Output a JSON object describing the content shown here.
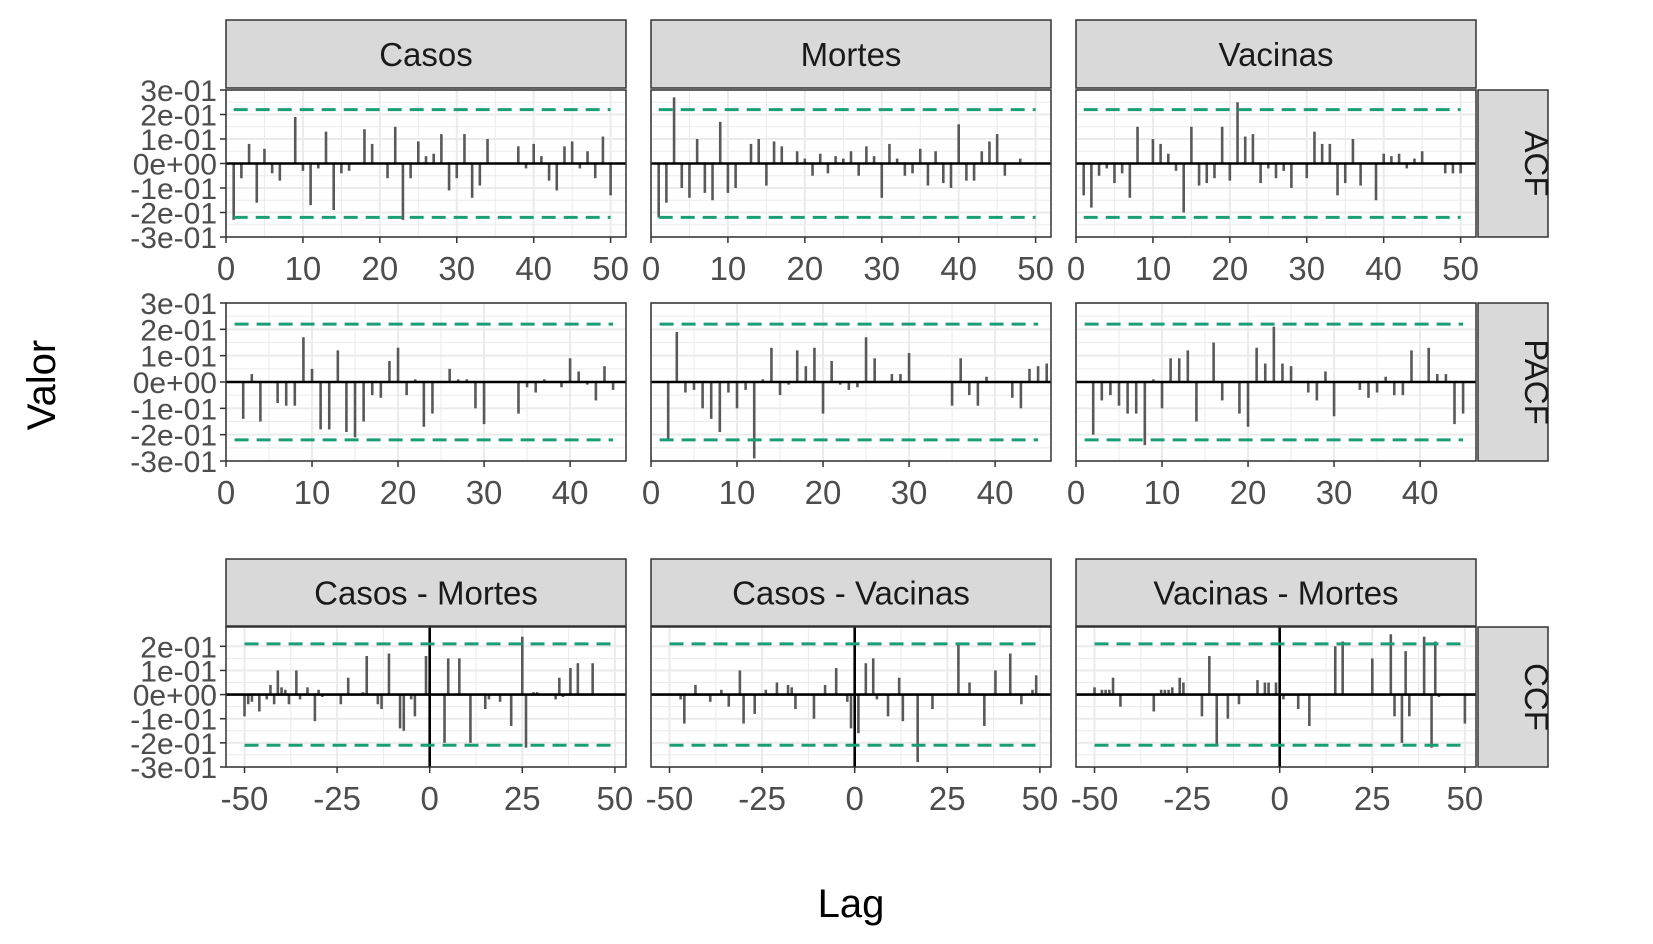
{
  "figure": {
    "ylabel": "Valor",
    "xlabel": "Lag",
    "colors": {
      "bar": "#595959",
      "conf": "#1b9e77",
      "strip_bg": "#d9d9d9",
      "grid": "#ebebeb",
      "zero": "#000000"
    }
  },
  "chart_data": [
    {
      "type": "bar",
      "row": "ACF",
      "ylim": [
        -0.3,
        0.3
      ],
      "y_ticks": [
        "3e-01",
        "2e-01",
        "1e-01",
        "0e+00",
        "-1e-01",
        "-2e-01",
        "-3e-01"
      ],
      "y_tick_values": [
        0.3,
        0.2,
        0.1,
        0.0,
        -0.1,
        -0.2,
        -0.3
      ],
      "xlim": [
        0,
        52
      ],
      "x_ticks": [
        0,
        10,
        20,
        30,
        40,
        50
      ],
      "conf": 0.22,
      "panels": [
        {
          "strip": "Casos",
          "x_start": 1,
          "values": [
            -0.23,
            -0.06,
            0.08,
            -0.16,
            0.06,
            -0.04,
            -0.07,
            0.0,
            0.19,
            -0.03,
            -0.17,
            -0.02,
            0.13,
            -0.19,
            -0.04,
            -0.03,
            0.0,
            0.14,
            0.08,
            0.0,
            -0.06,
            0.15,
            -0.23,
            -0.06,
            0.09,
            0.03,
            0.04,
            0.12,
            -0.11,
            -0.06,
            0.12,
            -0.14,
            -0.09,
            0.1,
            0.0,
            0.0,
            0.0,
            0.07,
            -0.02,
            0.08,
            0.03,
            -0.07,
            -0.11,
            0.07,
            0.09,
            -0.02,
            0.05,
            -0.06,
            0.11,
            -0.13
          ]
        },
        {
          "strip": "Mortes",
          "x_start": 1,
          "values": [
            -0.22,
            -0.16,
            0.27,
            -0.1,
            -0.14,
            0.1,
            -0.12,
            -0.15,
            0.17,
            -0.12,
            -0.1,
            0.0,
            0.08,
            0.1,
            -0.09,
            0.09,
            0.07,
            0.0,
            0.05,
            0.02,
            -0.05,
            0.04,
            -0.04,
            0.03,
            0.02,
            0.05,
            -0.05,
            0.07,
            0.03,
            -0.14,
            0.08,
            0.02,
            -0.05,
            -0.04,
            0.06,
            -0.09,
            0.05,
            -0.08,
            -0.1,
            0.16,
            -0.07,
            -0.07,
            0.05,
            0.09,
            0.12,
            -0.05,
            0.0,
            0.02,
            0.0,
            0.0
          ]
        },
        {
          "strip": "Vacinas",
          "x_start": 1,
          "values": [
            -0.13,
            -0.18,
            -0.05,
            -0.02,
            -0.08,
            -0.04,
            -0.14,
            0.15,
            0.0,
            0.1,
            0.08,
            0.04,
            -0.03,
            -0.2,
            0.15,
            -0.09,
            -0.08,
            -0.06,
            0.15,
            -0.07,
            0.25,
            0.11,
            0.12,
            -0.08,
            -0.02,
            -0.06,
            -0.03,
            -0.1,
            0.0,
            -0.06,
            0.13,
            0.08,
            0.08,
            -0.13,
            -0.08,
            0.1,
            -0.09,
            0.0,
            -0.15,
            0.04,
            0.03,
            0.04,
            -0.02,
            0.02,
            0.05,
            0.0,
            0.0,
            -0.04,
            -0.04,
            -0.04
          ]
        }
      ]
    },
    {
      "type": "bar",
      "row": "PACF",
      "ylim": [
        -0.3,
        0.3
      ],
      "y_ticks": [
        "3e-01",
        "2e-01",
        "1e-01",
        "0e+00",
        "-1e-01",
        "-2e-01",
        "-3e-01"
      ],
      "y_tick_values": [
        0.3,
        0.2,
        0.1,
        0.0,
        -0.1,
        -0.2,
        -0.3
      ],
      "xlim": [
        0,
        46.5
      ],
      "x_ticks": [
        0,
        10,
        20,
        30,
        40
      ],
      "conf": 0.22,
      "panels": [
        {
          "strip": "Casos",
          "x_start": 2,
          "values": [
            -0.14,
            0.03,
            -0.15,
            0.0,
            -0.08,
            -0.09,
            -0.09,
            0.17,
            0.05,
            -0.18,
            -0.18,
            0.12,
            -0.19,
            -0.21,
            -0.15,
            -0.05,
            -0.06,
            0.08,
            0.13,
            -0.05,
            0.01,
            -0.17,
            -0.12,
            0.0,
            0.05,
            0.01,
            0.01,
            -0.1,
            -0.16,
            0.0,
            0.0,
            0.0,
            -0.12,
            -0.02,
            -0.04,
            0.01,
            0.0,
            -0.02,
            0.09,
            0.04,
            -0.01,
            -0.07,
            0.06,
            -0.03
          ]
        },
        {
          "strip": "Mortes",
          "x_start": 2,
          "values": [
            -0.22,
            0.19,
            -0.04,
            -0.03,
            -0.1,
            -0.14,
            -0.19,
            -0.04,
            -0.1,
            -0.03,
            -0.29,
            0.01,
            0.13,
            -0.05,
            -0.01,
            0.12,
            0.06,
            0.13,
            -0.12,
            0.08,
            -0.01,
            -0.03,
            -0.02,
            0.17,
            0.09,
            0.0,
            0.03,
            0.03,
            0.11,
            0.0,
            0.0,
            0.0,
            0.0,
            -0.09,
            0.09,
            -0.05,
            -0.09,
            0.02,
            0.0,
            0.0,
            -0.06,
            -0.1,
            0.05,
            0.06,
            0.07
          ]
        },
        {
          "strip": "Vacinas",
          "x_start": 2,
          "values": [
            -0.2,
            -0.07,
            -0.05,
            -0.09,
            -0.12,
            -0.12,
            -0.24,
            0.01,
            -0.1,
            0.09,
            0.09,
            0.12,
            -0.15,
            0.0,
            0.15,
            -0.07,
            0.0,
            -0.12,
            -0.17,
            0.13,
            0.07,
            0.21,
            0.07,
            0.06,
            0.0,
            -0.04,
            -0.07,
            0.04,
            -0.13,
            0.0,
            0.0,
            -0.03,
            -0.06,
            -0.04,
            0.02,
            -0.05,
            -0.05,
            0.12,
            0.0,
            0.13,
            0.03,
            0.03,
            -0.16,
            -0.12,
            0.0
          ]
        }
      ]
    },
    {
      "type": "bar",
      "row": "CCF",
      "ylim": [
        -0.3,
        0.28
      ],
      "y_ticks": [
        "2e-01",
        "1e-01",
        "0e+00",
        "-1e-01",
        "-2e-01",
        "-3e-01"
      ],
      "y_tick_values": [
        0.2,
        0.1,
        0.0,
        -0.1,
        -0.2,
        -0.3
      ],
      "xlim": [
        -55,
        53
      ],
      "x_ticks": [
        -50,
        -25,
        0,
        25,
        50
      ],
      "conf": 0.21,
      "panels": [
        {
          "strip": "Casos - Mortes",
          "x_start": -50,
          "values": [
            -0.09,
            -0.04,
            -0.03,
            0.0,
            -0.07,
            0.0,
            -0.02,
            0.04,
            -0.04,
            0.1,
            0.03,
            0.02,
            -0.04,
            0.0,
            0.1,
            -0.02,
            0.0,
            0.03,
            0.0,
            -0.11,
            0.02,
            -0.01,
            0.0,
            0.0,
            0.0,
            0.0,
            -0.04,
            0.0,
            0.07,
            0.0,
            0.0,
            0.0,
            0.01,
            0.16,
            0.0,
            0.0,
            -0.04,
            -0.06,
            0.0,
            0.17,
            0.0,
            0.0,
            -0.14,
            -0.15,
            0.0,
            -0.02,
            -0.09,
            0.0,
            0.0,
            0.16,
            0.05,
            0.0,
            0.0,
            0.0,
            -0.2,
            0.15,
            0.0,
            0.0,
            0.15,
            0.0,
            0.0,
            -0.2,
            0.0,
            0.0,
            0.0,
            -0.06,
            -0.02,
            0.0,
            0.0,
            -0.03,
            0.0,
            0.0,
            -0.13,
            0.0,
            0.0,
            0.24,
            -0.22,
            0.0,
            0.01,
            0.01,
            0.0,
            0.0,
            0.0,
            0.0,
            -0.02,
            0.07,
            -0.01,
            0.0,
            0.11,
            0.0,
            0.13,
            0.0,
            0.0,
            0.0,
            0.13,
            0.0,
            0.0,
            0.0,
            0.0,
            0.0,
            0.0
          ]
        },
        {
          "strip": "Casos - Vacinas",
          "x_start": -50,
          "values": [
            0.0,
            0.0,
            0.0,
            -0.02,
            -0.12,
            0.0,
            0.0,
            0.04,
            0.0,
            0.0,
            0.0,
            -0.03,
            0.0,
            0.0,
            0.02,
            0.0,
            -0.05,
            0.0,
            0.0,
            0.1,
            -0.12,
            0.0,
            0.0,
            -0.08,
            0.0,
            0.0,
            0.02,
            0.0,
            0.0,
            0.05,
            0.0,
            0.0,
            0.04,
            0.03,
            -0.06,
            0.0,
            0.0,
            0.0,
            0.0,
            -0.1,
            0.0,
            0.0,
            0.04,
            0.0,
            0.0,
            0.11,
            0.0,
            0.0,
            -0.03,
            -0.14,
            0.0,
            -0.16,
            0.0,
            0.13,
            0.0,
            0.15,
            -0.02,
            0.0,
            0.0,
            -0.09,
            0.0,
            0.0,
            0.07,
            -0.11,
            0.0,
            0.0,
            0.0,
            -0.28,
            0.0,
            0.0,
            0.0,
            -0.06,
            0.0,
            0.0,
            0.0,
            0.0,
            0.0,
            0.0,
            0.21,
            0.0,
            0.0,
            0.05,
            0.0,
            0.0,
            0.0,
            -0.13,
            0.0,
            0.0,
            0.1,
            0.0,
            0.0,
            0.0,
            0.17,
            0.0,
            0.0,
            -0.04,
            0.0,
            0.0,
            0.02,
            0.08,
            0.0
          ]
        },
        {
          "strip": "Vacinas - Mortes",
          "x_start": -50,
          "values": [
            0.03,
            0.0,
            0.02,
            0.02,
            0.02,
            0.07,
            0.0,
            -0.05,
            0.0,
            0.0,
            0.0,
            0.0,
            0.0,
            0.0,
            0.0,
            0.0,
            -0.07,
            0.0,
            0.02,
            0.02,
            0.02,
            0.03,
            0.0,
            0.07,
            0.05,
            0.0,
            0.0,
            0.0,
            0.0,
            -0.09,
            0.0,
            0.16,
            0.0,
            -0.21,
            0.0,
            0.0,
            -0.1,
            0.0,
            0.0,
            -0.04,
            0.0,
            0.0,
            0.0,
            0.0,
            0.06,
            0.0,
            0.05,
            0.05,
            0.0,
            0.05,
            0.0,
            -0.02,
            0.0,
            0.0,
            0.0,
            -0.06,
            0.0,
            0.0,
            -0.13,
            0.0,
            0.0,
            0.0,
            0.0,
            0.0,
            0.0,
            0.2,
            0.0,
            0.22,
            0.0,
            0.0,
            0.0,
            0.0,
            0.0,
            0.0,
            0.0,
            0.15,
            0.0,
            0.0,
            0.0,
            0.0,
            0.25,
            -0.09,
            0.0,
            -0.2,
            0.18,
            -0.09,
            0.0,
            0.0,
            0.0,
            0.24,
            0.0,
            -0.22,
            0.22,
            -0.01,
            0.0,
            0.0,
            0.0,
            0.0,
            0.0,
            0.0,
            -0.12
          ]
        }
      ]
    }
  ]
}
